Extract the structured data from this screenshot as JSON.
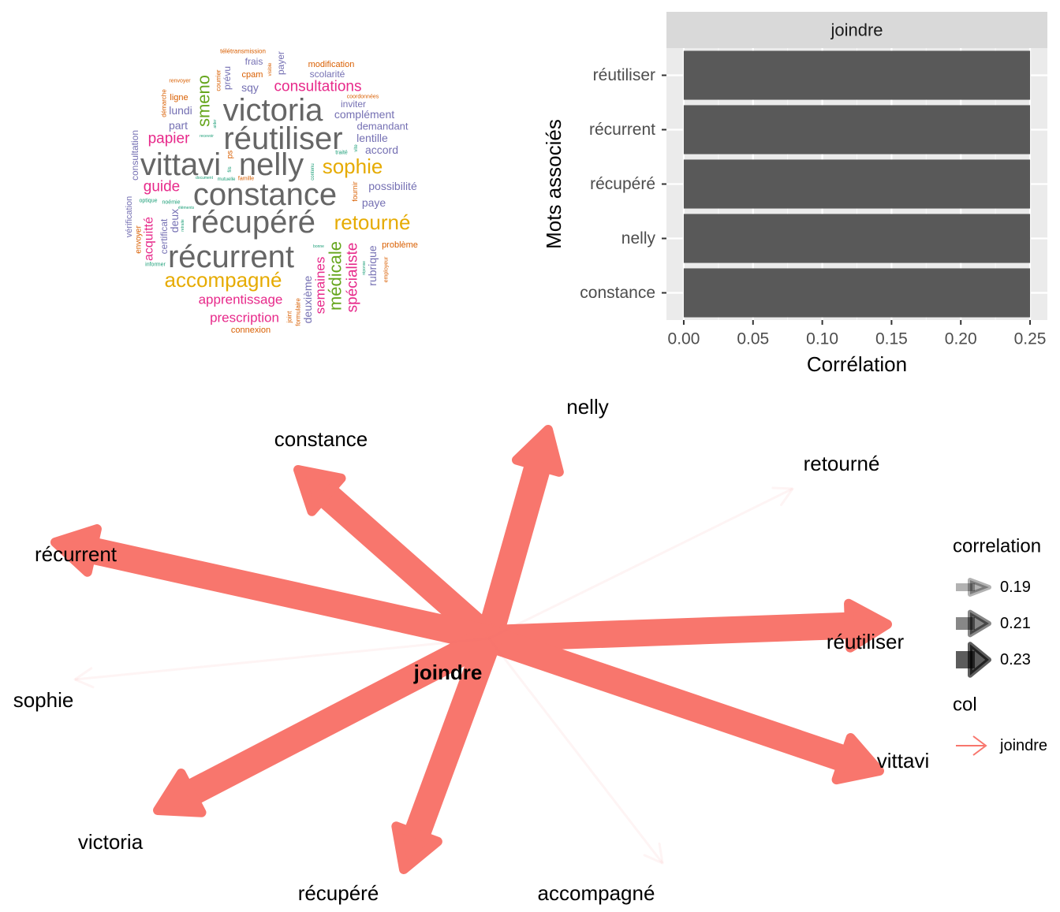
{
  "chart_data": [
    {
      "type": "wordcloud",
      "words": [
        {
          "w": "victoria",
          "c": "#666666"
        },
        {
          "w": "réutiliser",
          "c": "#666666"
        },
        {
          "w": "vittavi",
          "c": "#666666"
        },
        {
          "w": "nelly",
          "c": "#666666"
        },
        {
          "w": "constance",
          "c": "#666666"
        },
        {
          "w": "récupéré",
          "c": "#666666"
        },
        {
          "w": "récurrent",
          "c": "#666666"
        },
        {
          "w": "sophie",
          "c": "#e6ab02"
        },
        {
          "w": "retourné",
          "c": "#e6ab02"
        },
        {
          "w": "accompagné",
          "c": "#e6ab02"
        },
        {
          "w": "consultations",
          "c": "#e7298a"
        },
        {
          "w": "papier",
          "c": "#e7298a"
        },
        {
          "w": "guide",
          "c": "#e7298a"
        },
        {
          "w": "apprentissage",
          "c": "#e7298a"
        },
        {
          "w": "prescription",
          "c": "#e7298a"
        },
        {
          "w": "spécialiste",
          "c": "#e7298a"
        },
        {
          "w": "semaines",
          "c": "#e7298a"
        },
        {
          "w": "acquitté",
          "c": "#e7298a"
        },
        {
          "w": "smeno",
          "c": "#66a61e"
        },
        {
          "w": "médicale",
          "c": "#66a61e"
        },
        {
          "w": "complément",
          "c": "#7570b3"
        },
        {
          "w": "demandant",
          "c": "#7570b3"
        },
        {
          "w": "accord",
          "c": "#7570b3"
        },
        {
          "w": "lentille",
          "c": "#7570b3"
        },
        {
          "w": "possibilité",
          "c": "#7570b3"
        },
        {
          "w": "paye",
          "c": "#7570b3"
        },
        {
          "w": "rubrique",
          "c": "#7570b3"
        },
        {
          "w": "deuxième",
          "c": "#7570b3"
        },
        {
          "w": "sqy",
          "c": "#7570b3"
        },
        {
          "w": "frais",
          "c": "#7570b3"
        },
        {
          "w": "payer",
          "c": "#7570b3"
        },
        {
          "w": "scolarité",
          "c": "#7570b3"
        },
        {
          "w": "inviter",
          "c": "#7570b3"
        },
        {
          "w": "lundi",
          "c": "#7570b3"
        },
        {
          "w": "part",
          "c": "#7570b3"
        },
        {
          "w": "deux",
          "c": "#7570b3"
        },
        {
          "w": "certificat",
          "c": "#7570b3"
        },
        {
          "w": "prévu",
          "c": "#7570b3"
        },
        {
          "w": "consultation",
          "c": "#7570b3"
        },
        {
          "w": "vérification",
          "c": "#7570b3"
        },
        {
          "w": "modification",
          "c": "#d95f02"
        },
        {
          "w": "cpam",
          "c": "#d95f02"
        },
        {
          "w": "ligne",
          "c": "#d95f02"
        },
        {
          "w": "envoyer",
          "c": "#d95f02"
        },
        {
          "w": "problème",
          "c": "#d95f02"
        },
        {
          "w": "connexion",
          "c": "#d95f02"
        },
        {
          "w": "ps",
          "c": "#d95f02"
        },
        {
          "w": "fournir",
          "c": "#d95f02"
        },
        {
          "w": "joint",
          "c": "#d95f02"
        },
        {
          "w": "formulaire",
          "c": "#d95f02"
        },
        {
          "w": "employeur",
          "c": "#d95f02"
        },
        {
          "w": "télétransmission",
          "c": "#d95f02"
        },
        {
          "w": "courrier",
          "c": "#d95f02"
        },
        {
          "w": "coordonnées",
          "c": "#d95f02"
        },
        {
          "w": "renvoyer",
          "c": "#d95f02"
        },
        {
          "w": "démarche",
          "c": "#d95f02"
        },
        {
          "w": "famille",
          "c": "#d95f02"
        },
        {
          "w": "visible",
          "c": "#d95f02"
        },
        {
          "w": "optique",
          "c": "#1b9e77"
        },
        {
          "w": "noémie",
          "c": "#1b9e77"
        },
        {
          "w": "informer",
          "c": "#1b9e77"
        },
        {
          "w": "mutuelle",
          "c": "#1b9e77"
        },
        {
          "w": "traité",
          "c": "#1b9e77"
        },
        {
          "w": "vite",
          "c": "#1b9e77"
        },
        {
          "w": "recevoir",
          "c": "#1b9e77"
        },
        {
          "w": "document",
          "c": "#1b9e77"
        },
        {
          "w": "fils",
          "c": "#1b9e77"
        },
        {
          "w": "contenu",
          "c": "#1b9e77"
        },
        {
          "w": "bonne",
          "c": "#1b9e77"
        },
        {
          "w": "réponse",
          "c": "#1b9e77"
        },
        {
          "w": "retraite",
          "c": "#1b9e77"
        },
        {
          "w": "aider",
          "c": "#1b9e77"
        },
        {
          "w": "éléments",
          "c": "#1b9e77"
        }
      ]
    },
    {
      "type": "bar",
      "orientation": "horizontal",
      "facet": "joindre",
      "categories": [
        "réutiliser",
        "récurrent",
        "récupéré",
        "nelly",
        "constance"
      ],
      "values": [
        0.25,
        0.25,
        0.25,
        0.25,
        0.25
      ],
      "xlabel": "Corrélation",
      "ylabel": "Mots associés",
      "xlim": [
        -0.0125,
        0.2625
      ],
      "ticks": [
        0.0,
        0.05,
        0.1,
        0.15,
        0.2,
        0.25
      ],
      "tick_labels": [
        "0.00",
        "0.05",
        "0.10",
        "0.15",
        "0.20",
        "0.25"
      ],
      "bar_color": "#595959"
    },
    {
      "type": "network",
      "center": "joindre",
      "edge_color": "#f8766d",
      "edges": [
        {
          "to": "nelly",
          "correlation": 0.25
        },
        {
          "to": "constance",
          "correlation": 0.25
        },
        {
          "to": "récurrent",
          "correlation": 0.25
        },
        {
          "to": "réutiliser",
          "correlation": 0.25
        },
        {
          "to": "vittavi",
          "correlation": 0.25
        },
        {
          "to": "victoria",
          "correlation": 0.25
        },
        {
          "to": "récupéré",
          "correlation": 0.25
        },
        {
          "to": "retourné",
          "correlation": 0.18
        },
        {
          "to": "sophie",
          "correlation": 0.18
        },
        {
          "to": "accompagné",
          "correlation": 0.18
        }
      ],
      "legend": {
        "correlation_title": "correlation",
        "correlation_items": [
          {
            "label": "0.19",
            "value": 0.19
          },
          {
            "label": "0.21",
            "value": 0.21
          },
          {
            "label": "0.23",
            "value": 0.23
          }
        ],
        "col_title": "col",
        "col_items": [
          {
            "label": "joindre"
          }
        ]
      }
    }
  ]
}
